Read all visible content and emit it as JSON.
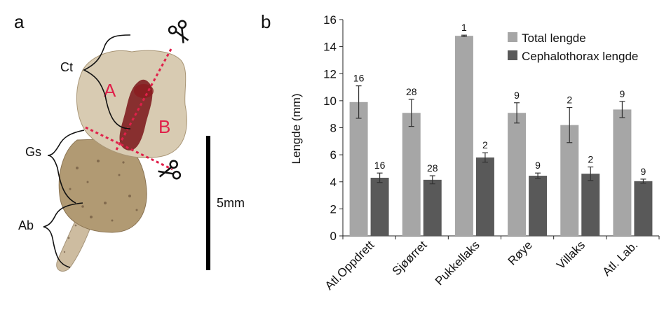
{
  "panel_a": {
    "label": "a",
    "region_labels": [
      "Ct",
      "Gs",
      "Ab"
    ],
    "cut_labels": [
      "A",
      "B"
    ],
    "scale_bar_label": "5mm",
    "colors": {
      "cut_line": "#e0204a",
      "body": "#d2c3a9",
      "organ": "#7a1418"
    }
  },
  "panel_b": {
    "label": "b",
    "colors": {
      "total": "#a6a6a6",
      "cephalothorax": "#595959"
    }
  },
  "chart_data": {
    "type": "bar",
    "title": "",
    "xlabel": "",
    "ylabel": "Lengde (mm)",
    "ylim": [
      0,
      16
    ],
    "yticks": [
      0,
      2,
      4,
      6,
      8,
      10,
      12,
      14,
      16
    ],
    "grid": false,
    "legend_position": "top-right",
    "categories": [
      "Atl.Oppdrett",
      "Sjøørret",
      "Pukkellaks",
      "Røye",
      "Villaks",
      "Atl. Lab."
    ],
    "series": [
      {
        "name": "Total lengde",
        "values": [
          9.9,
          9.1,
          14.8,
          9.1,
          8.2,
          9.35
        ],
        "errors": [
          1.2,
          1.0,
          0.05,
          0.75,
          1.3,
          0.6
        ],
        "n_labels": [
          "16",
          "28",
          "1",
          "9",
          "2",
          "9"
        ]
      },
      {
        "name": "Cephalothorax lengde",
        "values": [
          4.3,
          4.15,
          5.8,
          4.45,
          4.6,
          4.05
        ],
        "errors": [
          0.35,
          0.3,
          0.35,
          0.2,
          0.5,
          0.15
        ],
        "n_labels": [
          "16",
          "28",
          "2",
          "9",
          "2",
          "9"
        ]
      }
    ]
  }
}
